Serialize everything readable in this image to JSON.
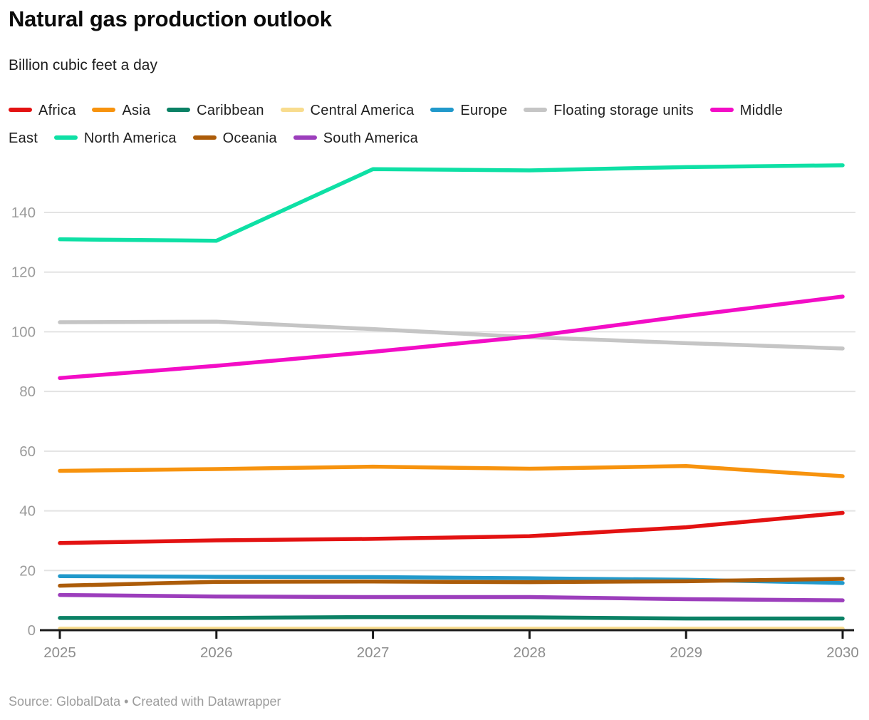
{
  "chart_data": {
    "type": "line",
    "title": "Natural gas production outlook",
    "subtitle": "Billion cubic feet a day",
    "xlabel": "",
    "ylabel": "Billion cubic feet a day",
    "x": [
      2025,
      2026,
      2027,
      2028,
      2029,
      2030
    ],
    "yticks": [
      0,
      20,
      40,
      60,
      80,
      100,
      120,
      140
    ],
    "ylim": [
      0,
      157
    ],
    "grid": true,
    "legend_position": "top",
    "series": [
      {
        "name": "Africa",
        "color": "#e31212",
        "values": [
          29.2,
          30.1,
          30.6,
          31.5,
          34.5,
          39.3
        ]
      },
      {
        "name": "Asia",
        "color": "#f7930e",
        "values": [
          53.4,
          54.0,
          54.8,
          54.1,
          55.0,
          51.6
        ]
      },
      {
        "name": "Caribbean",
        "color": "#0b8165",
        "values": [
          4.1,
          4.1,
          4.4,
          4.3,
          3.9,
          3.9
        ]
      },
      {
        "name": "Central America",
        "color": "#f8dc8e",
        "values": [
          0.5,
          0.5,
          0.5,
          0.5,
          0.5,
          0.5
        ]
      },
      {
        "name": "Europe",
        "color": "#2199cb",
        "values": [
          18.1,
          17.9,
          17.8,
          17.4,
          16.9,
          15.8
        ]
      },
      {
        "name": "Floating storage units",
        "color": "#c5c5c5",
        "values": [
          103.2,
          103.4,
          100.9,
          98.2,
          96.2,
          94.4
        ]
      },
      {
        "name": "Middle East",
        "color": "#f30dc6",
        "values": [
          84.5,
          88.6,
          93.3,
          98.4,
          105.3,
          111.8
        ]
      },
      {
        "name": "North America",
        "color": "#0ee0a5",
        "values": [
          131.0,
          130.5,
          154.5,
          154.1,
          155.2,
          155.8
        ]
      },
      {
        "name": "Oceania",
        "color": "#ac5c09",
        "values": [
          14.9,
          16.2,
          16.3,
          16.1,
          16.4,
          17.2
        ]
      },
      {
        "name": "South America",
        "color": "#9c3ebc",
        "values": [
          11.8,
          11.3,
          11.1,
          11.1,
          10.4,
          10.0
        ]
      }
    ],
    "axis_colors": {
      "gridline": "#e3e3e3",
      "axis_line": "#1a1a1a",
      "tick_label": "#8d8d8d",
      "y_label": "#9b9b9b"
    }
  },
  "footer": {
    "source": "Source: GlobalData • Created with Datawrapper"
  }
}
